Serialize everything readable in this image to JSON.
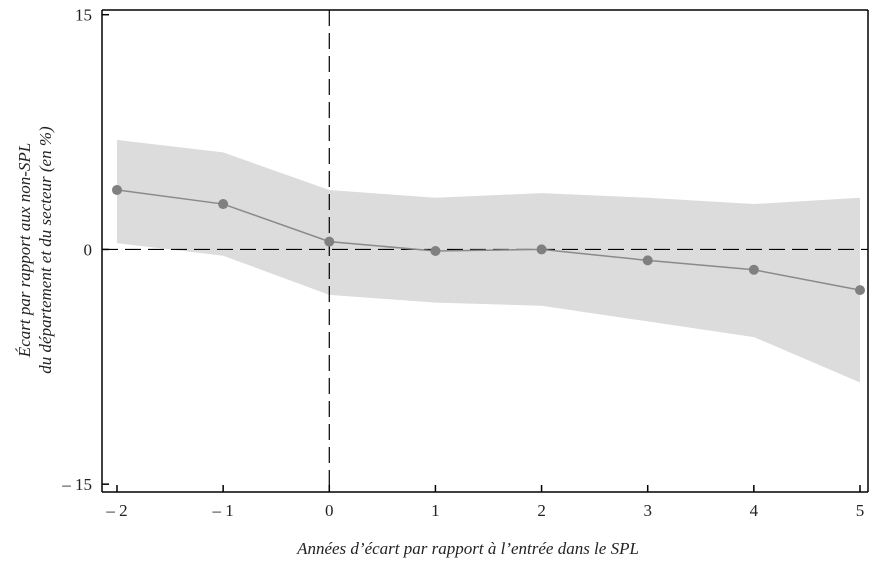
{
  "chart_data": {
    "type": "line",
    "title": "",
    "xlabel": "Années d’écart par rapport à l’entrée dans le SPL",
    "ylabel_line1": "Écart par rapport aux non-SPL",
    "ylabel_line2": "du département et du secteur (en %)",
    "x": [
      -2,
      -1,
      0,
      1,
      2,
      3,
      4,
      5
    ],
    "x_tick_labels": [
      "– 2",
      "– 1",
      "0",
      "1",
      "2",
      "3",
      "4",
      "5"
    ],
    "y_ticks": [
      15,
      0,
      -15
    ],
    "y_tick_labels": [
      "15",
      "0",
      "– 15"
    ],
    "xlim": [
      -2,
      5
    ],
    "ylim": [
      -15.5,
      15.3
    ],
    "series": [
      {
        "values": [
          3.8,
          2.9,
          0.5,
          -0.1,
          0.0,
          -0.7,
          -1.3,
          -2.6
        ],
        "ci_upper": [
          7.0,
          6.2,
          3.8,
          3.3,
          3.6,
          3.3,
          2.9,
          3.3
        ],
        "ci_lower": [
          0.4,
          -0.4,
          -2.9,
          -3.4,
          -3.6,
          -4.6,
          -5.6,
          -8.5
        ]
      }
    ],
    "reference_lines": {
      "y": 0,
      "x": 0,
      "style": "dashed"
    },
    "grid": false,
    "colors": {
      "line": "#8a8a8a",
      "marker": "#808080",
      "band": "#dcdcdc",
      "axis": "#000000"
    }
  }
}
